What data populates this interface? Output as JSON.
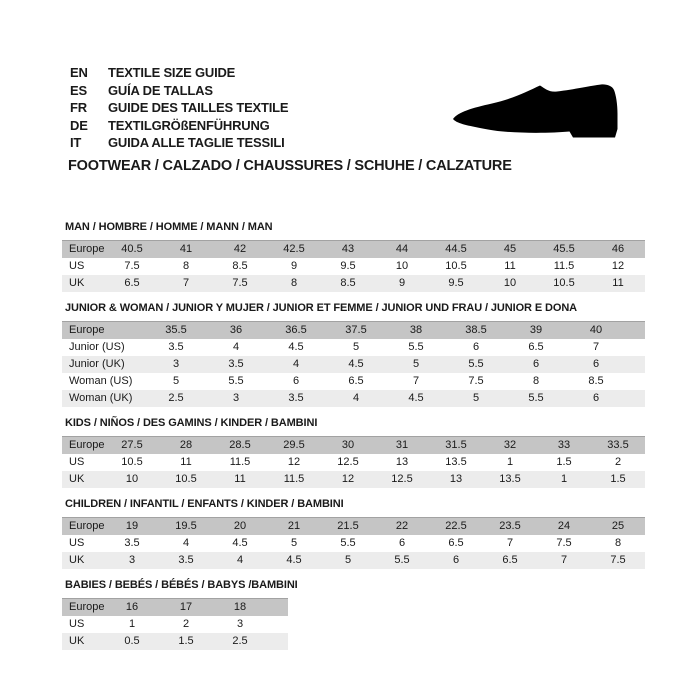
{
  "header": {
    "languages": [
      {
        "code": "EN",
        "label": "TEXTILE SIZE GUIDE"
      },
      {
        "code": "ES",
        "label": "GUÍA DE TALLAS"
      },
      {
        "code": "FR",
        "label": "GUIDE DES TAILLES TEXTILE"
      },
      {
        "code": "DE",
        "label": "TEXTILGRÖßENFÜHRUNG"
      },
      {
        "code": "IT",
        "label": "GUIDA ALLE TAGLIE TESSILI"
      }
    ],
    "category_title": "FOOTWEAR / CALZADO / CHAUSSURES / SCHUHE / CALZATURE",
    "icon": "dress-shoe-silhouette"
  },
  "colors": {
    "header_row_bg": "#c5c5c5",
    "alt_row_bg": "#ececec",
    "white_row_bg": "#ffffff",
    "text": "#1a1a1a",
    "shoe": "#000000"
  },
  "tables": [
    {
      "title": "MAN / HOMBRE / HOMME / MANN / MAN",
      "variant": "wide10",
      "rows": [
        {
          "label": "Europe",
          "header": true,
          "values": [
            "40.5",
            "41",
            "42",
            "42.5",
            "43",
            "44",
            "44.5",
            "45",
            "45.5",
            "46"
          ]
        },
        {
          "label": "US",
          "header": false,
          "values": [
            "7.5",
            "8",
            "8.5",
            "9",
            "9.5",
            "10",
            "10.5",
            "11",
            "11.5",
            "12"
          ]
        },
        {
          "label": "UK",
          "header": false,
          "values": [
            "6.5",
            "7",
            "7.5",
            "8",
            "8.5",
            "9",
            "9.5",
            "10",
            "10.5",
            "11"
          ]
        }
      ]
    },
    {
      "title": "JUNIOR & WOMAN / JUNIOR Y MUJER / JUNIOR ET FEMME / JUNIOR UND FRAU / JUNIOR E DONA",
      "variant": "wide8",
      "rows": [
        {
          "label": "Europe",
          "header": true,
          "values": [
            "35.5",
            "36",
            "36.5",
            "37.5",
            "38",
            "38.5",
            "39",
            "40"
          ]
        },
        {
          "label": "Junior (US)",
          "header": false,
          "values": [
            "3.5",
            "4",
            "4.5",
            "5",
            "5.5",
            "6",
            "6.5",
            "7"
          ]
        },
        {
          "label": "Junior (UK)",
          "header": false,
          "values": [
            "3",
            "3.5",
            "4",
            "4.5",
            "5",
            "5.5",
            "6",
            "6"
          ]
        },
        {
          "label": "Woman (US)",
          "header": false,
          "values": [
            "5",
            "5.5",
            "6",
            "6.5",
            "7",
            "7.5",
            "8",
            "8.5"
          ]
        },
        {
          "label": "Woman (UK)",
          "header": false,
          "values": [
            "2.5",
            "3",
            "3.5",
            "4",
            "4.5",
            "5",
            "5.5",
            "6"
          ]
        }
      ]
    },
    {
      "title": "KIDS / NIÑOS / DES GAMINS / KINDER / BAMBINI",
      "variant": "wide10",
      "rows": [
        {
          "label": "Europe",
          "header": true,
          "values": [
            "27.5",
            "28",
            "28.5",
            "29.5",
            "30",
            "31",
            "31.5",
            "32",
            "33",
            "33.5"
          ]
        },
        {
          "label": "US",
          "header": false,
          "values": [
            "10.5",
            "11",
            "11.5",
            "12",
            "12.5",
            "13",
            "13.5",
            "1",
            "1.5",
            "2"
          ]
        },
        {
          "label": "UK",
          "header": false,
          "values": [
            "10",
            "10.5",
            "11",
            "11.5",
            "12",
            "12.5",
            "13",
            "13.5",
            "1",
            "1.5"
          ]
        }
      ]
    },
    {
      "title": "CHILDREN / INFANTIL / ENFANTS / KINDER / BAMBINI",
      "variant": "wide10",
      "rows": [
        {
          "label": "Europe",
          "header": true,
          "values": [
            "19",
            "19.5",
            "20",
            "21",
            "21.5",
            "22",
            "22.5",
            "23.5",
            "24",
            "25"
          ]
        },
        {
          "label": "US",
          "header": false,
          "values": [
            "3.5",
            "4",
            "4.5",
            "5",
            "5.5",
            "6",
            "6.5",
            "7",
            "7.5",
            "8"
          ]
        },
        {
          "label": "UK",
          "header": false,
          "values": [
            "3",
            "3.5",
            "4",
            "4.5",
            "5",
            "5.5",
            "6",
            "6.5",
            "7",
            "7.5"
          ]
        }
      ]
    },
    {
      "title": "BABIES / BEBÉS / BÉBÉS / BABYS /BAMBINI",
      "variant": "narrow3",
      "rows": [
        {
          "label": "Europe",
          "header": true,
          "values": [
            "16",
            "17",
            "18"
          ]
        },
        {
          "label": "US",
          "header": false,
          "values": [
            "1",
            "2",
            "3"
          ]
        },
        {
          "label": "UK",
          "header": false,
          "values": [
            "0.5",
            "1.5",
            "2.5"
          ]
        }
      ]
    }
  ]
}
